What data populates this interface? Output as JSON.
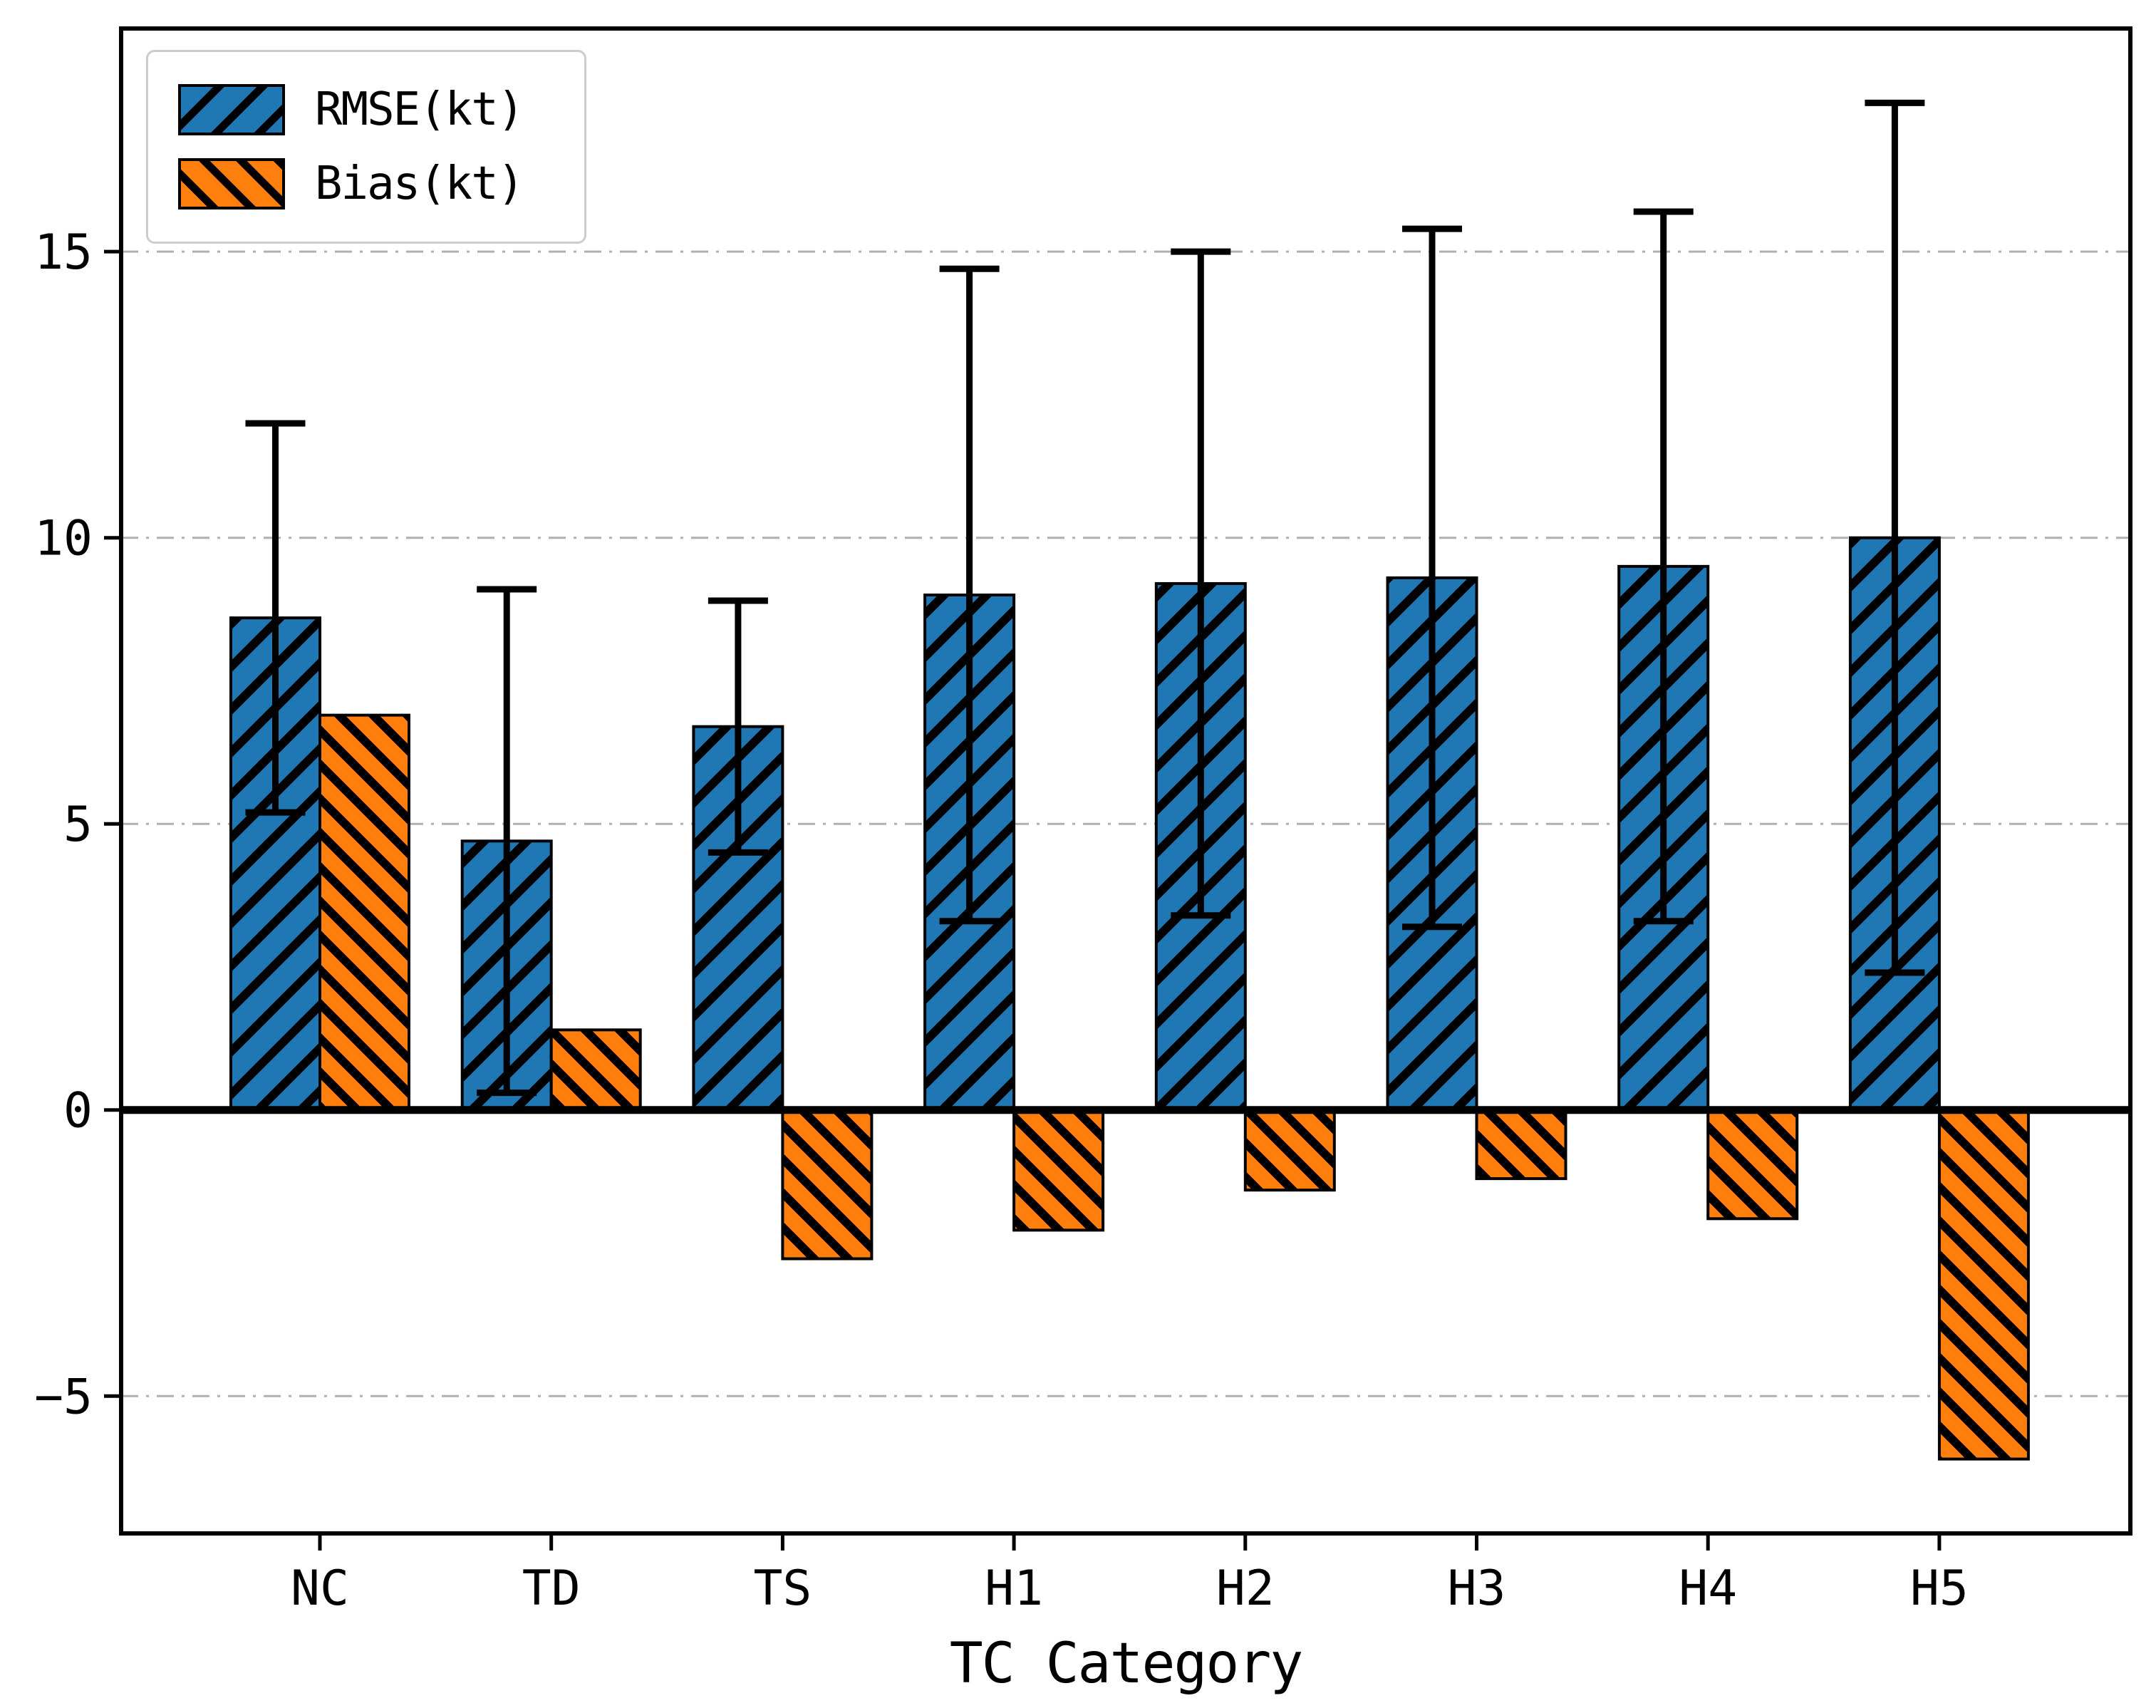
{
  "chart_data": {
    "type": "bar",
    "title": "",
    "xlabel": "TC Category",
    "ylabel": "",
    "categories": [
      "NC",
      "TD",
      "TS",
      "H1",
      "H2",
      "H3",
      "H4",
      "H5"
    ],
    "series": [
      {
        "name": "RMSE(kt)",
        "color": "#1f77b4",
        "hatch": "/",
        "values": [
          8.6,
          4.7,
          6.7,
          9.0,
          9.2,
          9.3,
          9.5,
          10.0
        ],
        "error": [
          3.4,
          4.4,
          2.2,
          5.7,
          5.8,
          6.1,
          6.2,
          7.6
        ]
      },
      {
        "name": "Bias(kt)",
        "color": "#ff7f0e",
        "hatch": "\\",
        "values": [
          6.9,
          1.4,
          -2.6,
          -2.1,
          -1.4,
          -1.2,
          -1.9,
          -6.1
        ],
        "error": null
      }
    ],
    "yticks": [
      -5,
      0,
      5,
      10,
      15
    ],
    "ylim": [
      -7.4,
      18.9
    ],
    "grid": "horizontal dash-dot",
    "zero_line": true,
    "legend_position": "upper left",
    "error_bar_color": "#000000",
    "grid_color": "#b0b0b0"
  }
}
